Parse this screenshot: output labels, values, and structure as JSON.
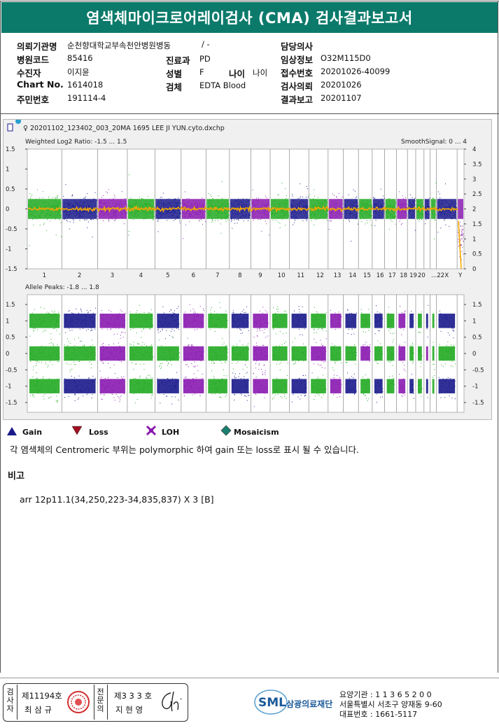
{
  "report": {
    "title": "염색체마이크로어레이검사 (CMA) 검사결과보고서"
  },
  "info": {
    "left": [
      {
        "label": "의뢰기관명",
        "value": "순천향대학교부속천안병원병동"
      },
      {
        "label": "병원코드",
        "value": "85416"
      },
      {
        "label": "수진자",
        "value": "이지윤"
      },
      {
        "label": "Chart No.",
        "value": "1614018"
      },
      {
        "label": "주민번호",
        "value": "191114-4"
      }
    ],
    "ward_value": "/ -",
    "dept": {
      "label": "진료과",
      "value": "PD"
    },
    "sex": {
      "label": "성별",
      "value": "F"
    },
    "age": {
      "label": "나이",
      "value": "나이"
    },
    "specimen": {
      "label": "검체",
      "value": "EDTA Blood"
    },
    "right": [
      {
        "label": "담당의사",
        "value": ""
      },
      {
        "label": "임상정보",
        "value": "O32M115D0"
      },
      {
        "label": "접수번호",
        "value": "20201026-40099"
      },
      {
        "label": "검사의뢰",
        "value": "20201026"
      },
      {
        "label": "결과보고",
        "value": "20201107"
      }
    ]
  },
  "chart": {
    "filename": "♀ 20201102_123402_003_20MA 1695 LEE JI YUN.cyto.dxchp",
    "top_label": "Weighted Log2 Ratio: -1.5 ... 1.5",
    "smooth_label": "SmoothSignal: 0 ... 4",
    "bottom_label": "Allele Peaks: -1.8 ... 1.8",
    "top_left_ticks": [
      "1.5",
      "1",
      "0.5",
      "0",
      "-0.5",
      "-1",
      "-1.5"
    ],
    "top_right_ticks": [
      "4",
      "3.5",
      "3",
      "2.5",
      "2",
      "1.5",
      "1",
      "0.5",
      "0"
    ],
    "bottom_left_ticks": [
      "1.5",
      "1",
      "0.5",
      "0",
      "-0.5",
      "-1",
      "-1.5"
    ],
    "bottom_right_ticks": [
      "1.5",
      "1",
      "0.5",
      "0",
      "-0.5",
      "-1",
      "-1.5"
    ],
    "chromosomes": [
      "1",
      "2",
      "3",
      "4",
      "5",
      "6",
      "7",
      "8",
      "9",
      "10",
      "11",
      "12",
      "13",
      "14",
      "15",
      "16",
      "17",
      "18",
      "19",
      "20",
      "21",
      "22",
      "X",
      "Y"
    ],
    "chrom_labels": [
      "1",
      "2",
      "3",
      "4",
      "5",
      "6",
      "7",
      "8",
      "9",
      "10",
      "11",
      "12",
      "13",
      "14",
      "15",
      "16",
      "17",
      "18",
      "19",
      "20",
      "...22",
      "X",
      "Y"
    ],
    "colors": {
      "green": "#22aa22",
      "navy": "#1a1a8c",
      "purple": "#8a1ab0",
      "orange": "#f5a800",
      "teal": "#0b7a6b"
    }
  },
  "legend": [
    {
      "icon": "gain-triangle-icon",
      "label": "Gain"
    },
    {
      "icon": "loss-triangle-icon",
      "label": "Loss"
    },
    {
      "icon": "loh-icon",
      "label": "LOH"
    },
    {
      "icon": "mosaicism-diamond-icon",
      "label": "Mosaicism"
    }
  ],
  "note": "각 염색체의 Centromeric 부위는 polymorphic 하여 gain 또는 loss로 표시 될 수 있습니다.",
  "remark": {
    "heading": "비고",
    "text": "arr 12p11.1(34,250,223-34,835,837) X 3 [B]"
  },
  "footer": {
    "left_vertical": "검사자",
    "tester_no": "제11194호",
    "tester_name": "최 삼 규",
    "right_vertical": "전문의",
    "doctor_no": "제3 3 3 호",
    "doctor_name": "지 현 영",
    "logo_text": "SML",
    "org_name": "삼광의료재단",
    "org_code": "요양기관 : 1 1 3 6 5 2 0 0",
    "org_address": "서울특별시 서초구 양재동 9-60",
    "org_phone": "대표번호 : 1661-5117"
  }
}
